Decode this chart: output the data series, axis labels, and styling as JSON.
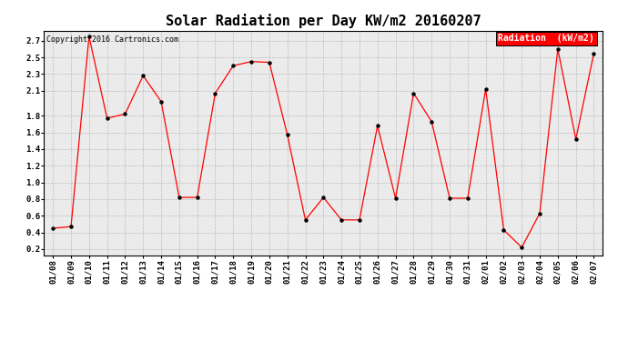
{
  "title": "Solar Radiation per Day KW/m2 20160207",
  "copyright": "Copyright 2016 Cartronics.com",
  "legend_label": "Radiation  (kW/m2)",
  "dates": [
    "01/08",
    "01/09",
    "01/10",
    "01/11",
    "01/12",
    "01/13",
    "01/14",
    "01/15",
    "01/16",
    "01/17",
    "01/18",
    "01/19",
    "01/20",
    "01/21",
    "01/22",
    "01/23",
    "01/24",
    "01/25",
    "01/26",
    "01/27",
    "01/28",
    "01/29",
    "01/30",
    "01/31",
    "02/01",
    "02/02",
    "02/03",
    "02/04",
    "02/05",
    "02/06",
    "02/07"
  ],
  "values": [
    0.45,
    0.47,
    2.75,
    1.77,
    1.82,
    2.28,
    1.97,
    0.82,
    0.82,
    2.07,
    2.4,
    2.45,
    2.44,
    1.57,
    0.55,
    0.82,
    0.55,
    0.55,
    1.68,
    0.81,
    2.07,
    1.73,
    0.81,
    0.81,
    2.12,
    0.43,
    0.22,
    0.63,
    2.6,
    1.52,
    2.55
  ],
  "ylim_min": 0.12,
  "ylim_max": 2.82,
  "yticks": [
    0.2,
    0.4,
    0.6,
    0.8,
    1.0,
    1.2,
    1.4,
    1.6,
    1.8,
    2.1,
    2.3,
    2.5,
    2.7
  ],
  "line_color": "#FF0000",
  "marker_color": "#000000",
  "bg_color": "#FFFFFF",
  "plot_bg_color": "#EBEBEB",
  "grid_color": "#BBBBBB",
  "title_fontsize": 11,
  "tick_fontsize": 6.5,
  "copyright_fontsize": 6,
  "legend_fontsize": 7,
  "legend_bg_color": "#FF0000",
  "legend_text_color": "#FFFFFF"
}
